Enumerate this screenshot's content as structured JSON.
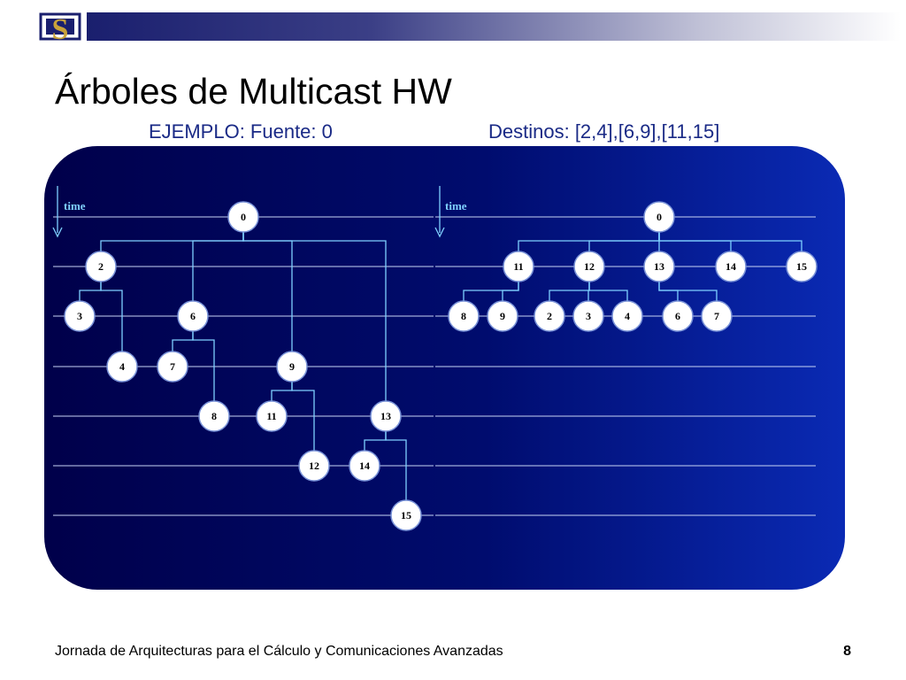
{
  "slide": {
    "title": "Árboles de Multicast HW",
    "subtitle_left": "EJEMPLO: Fuente: 0",
    "subtitle_right": "Destinos: [2,4],[6,9],[11,15]",
    "footer": "Jornada de Arquitecturas para el Cálculo y Comunicaciones Avanzadas",
    "page_number": "8",
    "logo_letter": "S"
  },
  "diagram": {
    "time_label": "time",
    "colors": {
      "panel_dark": "#00004a",
      "panel_light": "#0a2ab4",
      "edge": "#7fd0ff",
      "node_fill": "#ffffff",
      "node_stroke": "#7a93d8",
      "level_line": "#c8d4f4"
    },
    "left_tree": {
      "nodes": [
        {
          "id": "0",
          "level": 0
        },
        {
          "id": "2",
          "level": 1
        },
        {
          "id": "3",
          "level": 2
        },
        {
          "id": "6",
          "level": 2
        },
        {
          "id": "4",
          "level": 3
        },
        {
          "id": "7",
          "level": 3
        },
        {
          "id": "9",
          "level": 3
        },
        {
          "id": "8",
          "level": 4
        },
        {
          "id": "11",
          "level": 4
        },
        {
          "id": "13",
          "level": 4
        },
        {
          "id": "12",
          "level": 5
        },
        {
          "id": "14",
          "level": 5
        },
        {
          "id": "15",
          "level": 6
        }
      ],
      "edges": [
        [
          "0",
          "2"
        ],
        [
          "0",
          "6"
        ],
        [
          "0",
          "9"
        ],
        [
          "0",
          "13"
        ],
        [
          "2",
          "3"
        ],
        [
          "2",
          "4"
        ],
        [
          "6",
          "7"
        ],
        [
          "6",
          "8"
        ],
        [
          "9",
          "11"
        ],
        [
          "9",
          "12"
        ],
        [
          "13",
          "14"
        ],
        [
          "13",
          "15"
        ]
      ]
    },
    "right_tree": {
      "nodes": [
        {
          "id": "0",
          "level": 0
        },
        {
          "id": "11",
          "level": 1
        },
        {
          "id": "12",
          "level": 1
        },
        {
          "id": "13",
          "level": 1
        },
        {
          "id": "14",
          "level": 1
        },
        {
          "id": "15",
          "level": 1
        },
        {
          "id": "8",
          "level": 2
        },
        {
          "id": "9",
          "level": 2
        },
        {
          "id": "2",
          "level": 2
        },
        {
          "id": "3",
          "level": 2
        },
        {
          "id": "4",
          "level": 2
        },
        {
          "id": "6",
          "level": 2
        },
        {
          "id": "7",
          "level": 2
        }
      ],
      "edges": [
        [
          "0",
          "11"
        ],
        [
          "0",
          "12"
        ],
        [
          "0",
          "13"
        ],
        [
          "0",
          "14"
        ],
        [
          "0",
          "15"
        ],
        [
          "11",
          "8"
        ],
        [
          "11",
          "9"
        ],
        [
          "12",
          "2"
        ],
        [
          "12",
          "3"
        ],
        [
          "12",
          "4"
        ],
        [
          "13",
          "6"
        ],
        [
          "13",
          "7"
        ]
      ]
    }
  }
}
